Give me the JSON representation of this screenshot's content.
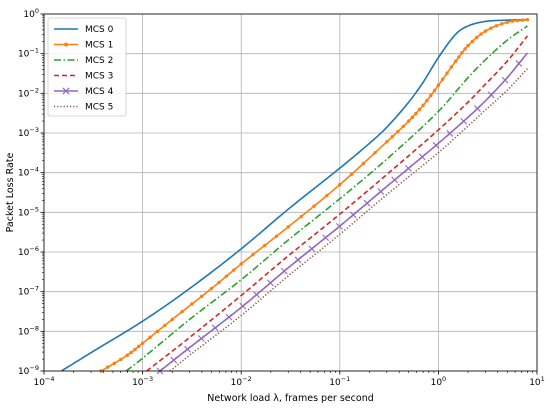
{
  "chart_data": {
    "type": "line",
    "title": "",
    "xlabel": "Network load λ, frames per second",
    "ylabel": "Packet Loss Rate",
    "xscale": "log",
    "yscale": "log",
    "xlim": [
      0.0001,
      10
    ],
    "ylim": [
      1e-09,
      1
    ],
    "grid": true,
    "legend_position": "top-left",
    "x_tick_labels": [
      {
        "base": "10",
        "exp": "−4",
        "value": 0.0001
      },
      {
        "base": "10",
        "exp": "−3",
        "value": 0.001
      },
      {
        "base": "10",
        "exp": "−2",
        "value": 0.01
      },
      {
        "base": "10",
        "exp": "−1",
        "value": 0.1
      },
      {
        "base": "10",
        "exp": "0",
        "value": 1
      },
      {
        "base": "10",
        "exp": "1",
        "value": 10
      }
    ],
    "y_tick_labels": [
      {
        "base": "10",
        "exp": "−9",
        "value": 1e-09
      },
      {
        "base": "10",
        "exp": "−8",
        "value": 1e-08
      },
      {
        "base": "10",
        "exp": "−7",
        "value": 1e-07
      },
      {
        "base": "10",
        "exp": "−6",
        "value": 1e-06
      },
      {
        "base": "10",
        "exp": "−5",
        "value": 1e-05
      },
      {
        "base": "10",
        "exp": "−4",
        "value": 0.0001
      },
      {
        "base": "10",
        "exp": "−3",
        "value": 0.001
      },
      {
        "base": "10",
        "exp": "−2",
        "value": 0.01
      },
      {
        "base": "10",
        "exp": "−1",
        "value": 0.1
      },
      {
        "base": "10",
        "exp": "0",
        "value": 1
      }
    ],
    "series": [
      {
        "name": "MCS 0",
        "color": "#1f77b4",
        "dash": "solid",
        "marker": "none",
        "x": [
          0.00015,
          0.0003,
          0.001,
          0.003,
          0.01,
          0.03,
          0.1,
          0.2,
          0.3,
          0.5,
          0.7,
          1.0,
          1.5,
          2.0,
          3.0,
          5.0,
          8.0
        ],
        "y": [
          1e-09,
          2.9e-09,
          1.8e-08,
          1.2e-07,
          1.2e-06,
          1.2e-05,
          0.00013,
          0.00055,
          0.0014,
          0.006,
          0.019,
          0.08,
          0.31,
          0.5,
          0.65,
          0.7,
          0.72
        ]
      },
      {
        "name": "MCS 1",
        "color": "#ff7f0e",
        "dash": "solid",
        "marker": "dot",
        "x": [
          0.00038,
          0.0007,
          0.001,
          0.002,
          0.005,
          0.01,
          0.03,
          0.1,
          0.3,
          0.5,
          0.7,
          1.0,
          1.5,
          2.0,
          3.0,
          5.0,
          8.0
        ],
        "y": [
          1e-09,
          2.5e-09,
          5e-09,
          2e-08,
          1.2e-07,
          5e-07,
          4.3e-06,
          5e-05,
          0.0006,
          0.002,
          0.005,
          0.016,
          0.065,
          0.16,
          0.37,
          0.62,
          0.72
        ]
      },
      {
        "name": "MCS 2",
        "color": "#2ca02c",
        "dash": "dashdot",
        "marker": "none",
        "x": [
          0.00068,
          0.001,
          0.003,
          0.01,
          0.03,
          0.1,
          0.3,
          1.0,
          2.0,
          3.0,
          5.0,
          8.0
        ],
        "y": [
          1e-09,
          2.1e-09,
          2e-08,
          2e-07,
          2e-06,
          2.2e-05,
          0.00022,
          0.0035,
          0.025,
          0.07,
          0.22,
          0.5
        ]
      },
      {
        "name": "MCS 3",
        "color": "#d62728",
        "dash": "dashed",
        "marker": "none",
        "x": [
          0.0011,
          0.003,
          0.01,
          0.03,
          0.1,
          0.3,
          1.0,
          2.0,
          3.0,
          5.0,
          8.0
        ],
        "y": [
          1e-09,
          7e-09,
          8e-08,
          8e-07,
          9e-06,
          9e-05,
          0.0012,
          0.006,
          0.017,
          0.065,
          0.28
        ]
      },
      {
        "name": "MCS 4",
        "color": "#9467bd",
        "dash": "solid",
        "marker": "x",
        "x": [
          0.0015,
          0.003,
          0.01,
          0.03,
          0.1,
          0.3,
          1.0,
          2.0,
          3.0,
          5.0,
          8.0
        ],
        "y": [
          1e-09,
          3.9e-09,
          4e-08,
          4e-07,
          4.5e-06,
          4.5e-05,
          0.00055,
          0.0025,
          0.0065,
          0.025,
          0.105
        ]
      },
      {
        "name": "MCS 5",
        "color": "#8c564b",
        "dash": "dotted",
        "marker": "none",
        "x": [
          0.0019,
          0.003,
          0.01,
          0.03,
          0.1,
          0.3,
          1.0,
          2.0,
          3.0,
          5.0,
          8.0
        ],
        "y": [
          1e-09,
          2.5e-09,
          2.5e-08,
          2.5e-07,
          2.8e-06,
          2.8e-05,
          0.00032,
          0.0015,
          0.0038,
          0.012,
          0.042
        ]
      }
    ]
  }
}
